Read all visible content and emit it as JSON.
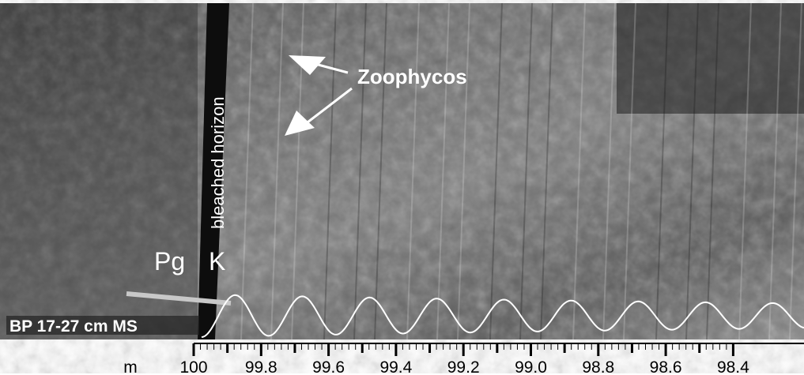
{
  "annotations": {
    "fossil": "Zoophycos",
    "horizon": "bleached horizon",
    "left_unit": "Pg",
    "right_unit": "K",
    "signal": "BP 17-27 cm MS"
  },
  "scale": {
    "unit": "m",
    "ticks": [
      "100",
      "99.8",
      "99.6",
      "99.4",
      "99.2",
      "99.0",
      "98.8",
      "98.6",
      "98.4"
    ]
  }
}
